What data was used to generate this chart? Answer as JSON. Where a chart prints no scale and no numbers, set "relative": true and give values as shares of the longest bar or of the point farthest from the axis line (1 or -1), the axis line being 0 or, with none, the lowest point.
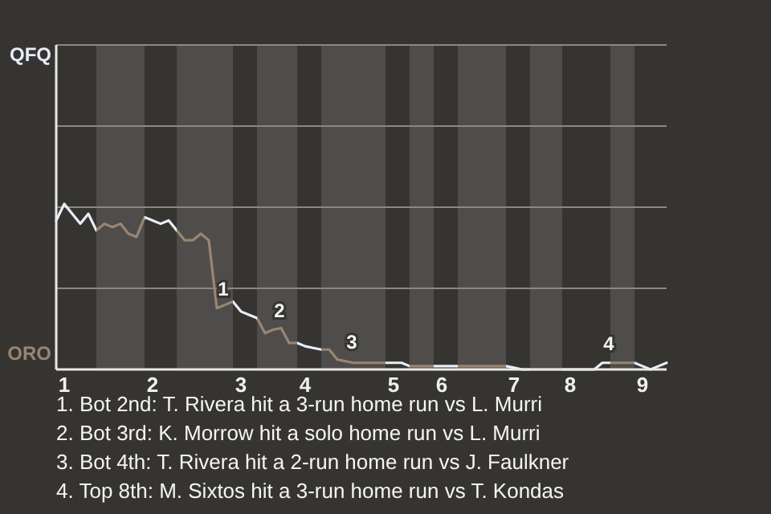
{
  "chart_data": {
    "type": "line",
    "relative": true,
    "categories": [
      null,
      "1",
      null,
      null,
      null,
      null,
      null,
      null,
      null,
      null,
      null,
      null,
      "2",
      null,
      null,
      null,
      null,
      null,
      null,
      null,
      null,
      null,
      null,
      "3",
      null,
      null,
      null,
      null,
      null,
      null,
      null,
      "4",
      null,
      null,
      null,
      null,
      null,
      null,
      null,
      null,
      null,
      null,
      "5",
      null,
      null,
      null,
      null,
      null,
      "6",
      null,
      null,
      null,
      null,
      null,
      null,
      null,
      null,
      "7",
      null,
      null,
      null,
      null,
      null,
      null,
      "8",
      null,
      null,
      null,
      null,
      null,
      null,
      null,
      null,
      "9",
      null,
      null,
      null
    ],
    "marker": "none",
    "line_style": "solid",
    "ref_lines": [
      {
        "axis": "y",
        "value": 0.49,
        "color": "#8a8784"
      },
      {
        "axis": "y",
        "value": 0.98,
        "color": "#8a8784"
      },
      {
        "axis": "y",
        "value": 1.47,
        "color": "#8a8784"
      },
      {
        "axis": "y",
        "value": 1.96,
        "color": "#8a8784"
      }
    ],
    "series": [
      {
        "values": [
          0.9,
          1,
          0.94,
          0.88,
          0.94,
          0.84,
          0.88,
          0.86,
          0.88,
          0.82,
          0.8,
          0.92,
          0.9,
          0.88,
          0.9,
          0.84,
          0.78,
          0.78,
          0.82,
          0.78,
          0.37,
          0.39,
          0.41,
          0.35,
          0.33,
          0.31,
          0.22,
          0.24,
          0.25,
          0.16,
          0.16,
          0.14,
          0.13,
          0.12,
          0.12,
          0.06,
          0.05,
          0.04,
          0.04,
          0.04,
          0.04,
          0.04,
          0.04,
          0.04,
          0.02,
          0.02,
          0.02,
          0.02,
          0.02,
          0.02,
          0.02,
          0.02,
          0.02,
          0.02,
          0.02,
          0.02,
          0.02,
          0.01,
          0,
          0,
          0,
          0,
          0,
          0,
          0,
          0,
          0,
          0,
          0.04,
          0.04,
          0.04,
          0.04,
          0.04,
          0.02,
          0,
          0.02,
          0.04
        ],
        "colors": [
          "#e8eef8",
          "#e8eef8",
          "#e8eef8",
          "#e8eef8",
          "#e8eef8",
          "#9a8572",
          "#9a8572",
          "#9a8572",
          "#9a8572",
          "#9a8572",
          "#9a8572",
          "#e8eef8",
          "#e8eef8",
          "#e8eef8",
          "#e8eef8",
          "#9a8572",
          "#9a8572",
          "#9a8572",
          "#9a8572",
          "#9a8572",
          "#9a8572",
          "#9a8572",
          "#e8eef8",
          "#e8eef8",
          "#e8eef8",
          "#9a8572",
          "#9a8572",
          "#9a8572",
          "#9a8572",
          "#9a8572",
          "#e8eef8",
          "#e8eef8",
          "#e8eef8",
          "#9a8572",
          "#9a8572",
          "#9a8572",
          "#9a8572",
          "#9a8572",
          "#9a8572",
          "#9a8572",
          "#9a8572",
          "#e8eef8",
          "#e8eef8",
          "#e8eef8",
          "#9a8572",
          "#9a8572",
          "#9a8572",
          "#e8eef8",
          "#e8eef8",
          "#e8eef8",
          "#9a8572",
          "#9a8572",
          "#9a8572",
          "#9a8572",
          "#9a8572",
          "#9a8572",
          "#e8eef8",
          "#e8eef8",
          "#e8eef8",
          "#9a8572",
          "#9a8572",
          "#9a8572",
          "#9a8572",
          "#e8eef8",
          "#e8eef8",
          "#e8eef8",
          "#e8eef8",
          "#e8eef8",
          "#e8eef8",
          "#9a8572",
          "#9a8572",
          "#9a8572",
          "#e8eef8",
          "#e8eef8",
          "#e8eef8",
          "#e8eef8",
          "#e8eef8"
        ]
      }
    ],
    "annotations": [
      "QFQ",
      "ORO",
      {
        "text": "1",
        "y": 0.37
      },
      {
        "text": "2",
        "y": 0.24
      },
      {
        "text": "3",
        "y": 0.05
      },
      {
        "text": "4",
        "y": 0.04
      },
      "1. Bot 2nd: T. Rivera hit a 3-run home run vs L. Murri",
      "2. Bot 3rd: K. Morrow hit a solo home run vs L. Murri",
      "3. Bot 4th: T. Rivera hit a 2-run home run vs J. Faulkner",
      "4. Top 8th: M. Sixtos hit a 3-run home run vs T. Kondas"
    ]
  }
}
